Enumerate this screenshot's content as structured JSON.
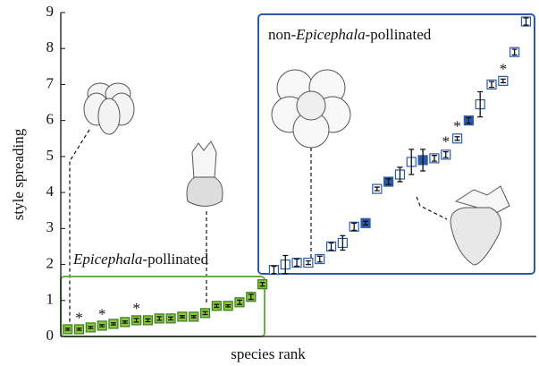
{
  "chart_data": {
    "type": "scatter",
    "y_label": "style spreading",
    "x_label": "species rank",
    "xlim": [
      0.4,
      41.9
    ],
    "ylim": [
      0,
      9
    ],
    "yticks": [
      0,
      1,
      2,
      3,
      4,
      5,
      6,
      7,
      8,
      9
    ],
    "series": [
      {
        "name_parts": [
          {
            "text": "Epicephala",
            "italic": true
          },
          {
            "text": "-pollinated",
            "italic": false
          }
        ],
        "color": "#8cc63e",
        "edge": "#3a7d1e",
        "x": [
          1,
          2,
          3,
          4,
          5,
          6,
          7,
          8,
          9,
          10,
          11,
          12,
          13,
          14,
          15,
          16,
          17,
          18
        ],
        "values": [
          0.2,
          0.2,
          0.25,
          0.3,
          0.35,
          0.4,
          0.45,
          0.45,
          0.5,
          0.5,
          0.55,
          0.55,
          0.65,
          0.85,
          0.85,
          0.95,
          1.1,
          1.45
        ],
        "errors": [
          0.03,
          0.03,
          0.03,
          0.03,
          0.03,
          0.03,
          0.05,
          0.04,
          0.05,
          0.04,
          0.03,
          0.03,
          0.04,
          0.04,
          0.03,
          0.06,
          0.07,
          0.05
        ],
        "filled": [
          true,
          true,
          true,
          true,
          true,
          true,
          true,
          true,
          true,
          true,
          true,
          true,
          true,
          true,
          true,
          true,
          true,
          true
        ],
        "point_labels": [
          null,
          "*",
          null,
          "*",
          null,
          null,
          "*",
          null,
          null,
          null,
          null,
          null,
          null,
          null,
          null,
          null,
          null,
          null
        ]
      },
      {
        "name_parts": [
          {
            "text": "non-",
            "italic": false
          },
          {
            "text": "Epicephala",
            "italic": true
          },
          {
            "text": "-pollinated",
            "italic": false
          }
        ],
        "color": "#2b5aa8",
        "edge": "#2b5aa8",
        "x": [
          19,
          20,
          21,
          22,
          23,
          24,
          25,
          26,
          27,
          28,
          29,
          30,
          31,
          32,
          33,
          34,
          35,
          36,
          37,
          38,
          39,
          40,
          41
        ],
        "values": [
          1.85,
          2.0,
          2.05,
          2.05,
          2.15,
          2.5,
          2.6,
          3.05,
          3.15,
          4.1,
          4.3,
          4.5,
          4.85,
          4.9,
          4.95,
          5.05,
          5.5,
          6.0,
          6.45,
          7.0,
          7.1,
          7.9,
          8.75
        ],
        "errors": [
          0.1,
          0.25,
          0.1,
          0.05,
          0.08,
          0.1,
          0.2,
          0.1,
          0.05,
          0.05,
          0.08,
          0.2,
          0.35,
          0.3,
          0.08,
          0.08,
          0.05,
          0.08,
          0.35,
          0.08,
          0.05,
          0.08,
          0.1
        ],
        "filled": [
          false,
          false,
          false,
          false,
          false,
          false,
          false,
          false,
          true,
          false,
          true,
          false,
          false,
          true,
          false,
          false,
          false,
          true,
          false,
          false,
          false,
          false,
          false
        ],
        "point_labels": [
          null,
          null,
          null,
          null,
          null,
          null,
          null,
          null,
          null,
          null,
          null,
          null,
          null,
          null,
          null,
          "*",
          "*",
          null,
          null,
          null,
          "*",
          null,
          null
        ]
      }
    ]
  }
}
